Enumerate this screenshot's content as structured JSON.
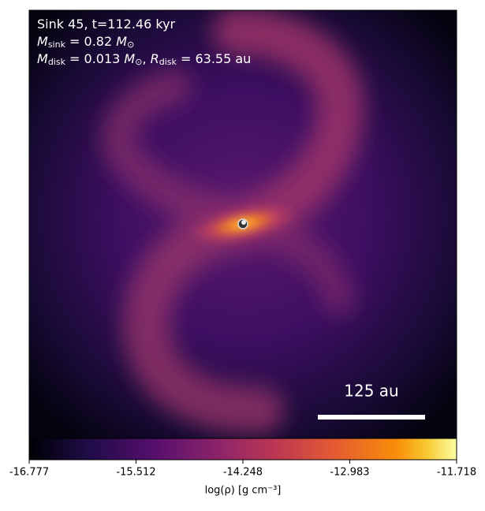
{
  "chart_data": {
    "type": "density-map",
    "annotation_lines": [
      [
        {
          "text": "Sink 45, t=112.46 kyr",
          "style": "normal"
        }
      ],
      [
        {
          "text": "M",
          "style": "italic"
        },
        {
          "text": "sink",
          "style": "sub"
        },
        {
          "text": " = 0.82 ",
          "style": "normal"
        },
        {
          "text": "M",
          "style": "italic"
        },
        {
          "text": "⊙",
          "style": "sub"
        }
      ],
      [
        {
          "text": "M",
          "style": "italic"
        },
        {
          "text": "disk",
          "style": "sub"
        },
        {
          "text": " = 0.013 ",
          "style": "normal"
        },
        {
          "text": "M",
          "style": "italic"
        },
        {
          "text": "⊙",
          "style": "sub"
        },
        {
          "text": ", ",
          "style": "normal"
        },
        {
          "text": "R",
          "style": "italic"
        },
        {
          "text": "disk",
          "style": "sub"
        },
        {
          "text": " = 63.55 au",
          "style": "normal"
        }
      ]
    ],
    "scale_bar_label": "125 au",
    "colorbar_label": "log(ρ) [g cm⁻³]",
    "colormap": "inferno",
    "clim": [
      -16.777,
      -11.718
    ],
    "cticks": [
      -16.777,
      -15.512,
      -14.248,
      -12.983,
      -11.718
    ]
  }
}
